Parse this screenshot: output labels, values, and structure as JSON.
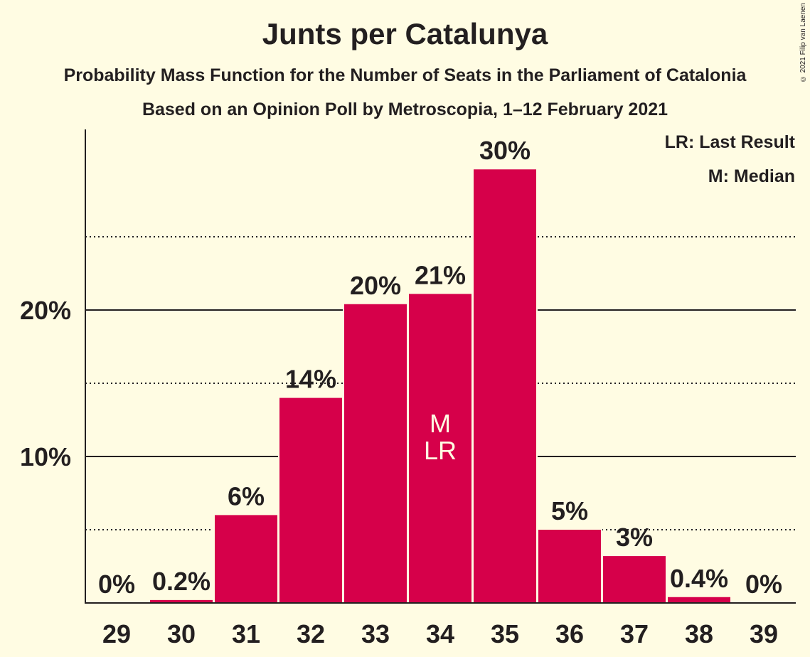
{
  "title": "Junts per Catalunya",
  "subtitle1": "Probability Mass Function for the Number of Seats in the Parliament of Catalonia",
  "subtitle2": "Based on an Opinion Poll by Metroscopia, 1–12 February 2021",
  "copyright": "© 2021 Filip van Laenen",
  "legend": {
    "last_result": "LR: Last Result",
    "median": "M: Median"
  },
  "colors": {
    "bar": "#D6004A",
    "background": "#FFFCE3",
    "text": "#231F20"
  },
  "chart_data": {
    "type": "bar",
    "categories": [
      "29",
      "30",
      "31",
      "32",
      "33",
      "34",
      "35",
      "36",
      "37",
      "38",
      "39"
    ],
    "values": [
      0,
      0.2,
      6,
      14,
      20.4,
      21.1,
      29.6,
      5,
      3.2,
      0.4,
      0
    ],
    "labels": [
      "0%",
      "0.2%",
      "6%",
      "14%",
      "20%",
      "21%",
      "30%",
      "5%",
      "3%",
      "0.4%",
      "0%"
    ],
    "ylim": [
      0,
      32
    ],
    "yticks": [
      {
        "value": 10,
        "label": "10%"
      },
      {
        "value": 20,
        "label": "20%"
      }
    ],
    "minor_gridlines": [
      5,
      15,
      25
    ],
    "markers": {
      "category": "34",
      "lines": [
        "M",
        "LR"
      ]
    },
    "grid": true,
    "legend_position": "top-right"
  }
}
